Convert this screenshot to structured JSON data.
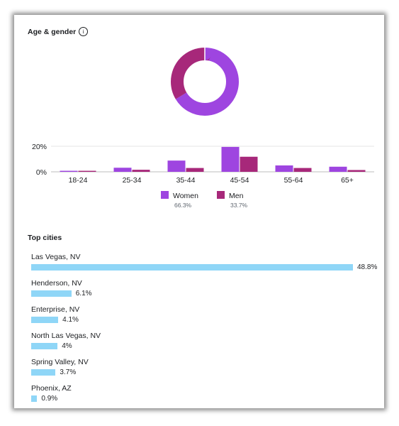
{
  "age_gender": {
    "title": "Age & gender",
    "info_icon": "info-icon",
    "donut": [
      {
        "name": "Women",
        "value": 66.3,
        "color": "#9e45e0"
      },
      {
        "name": "Men",
        "value": 33.7,
        "color": "#a7287a"
      }
    ],
    "legend": [
      {
        "label": "Women",
        "pct": "66.3%",
        "color": "#9e45e0"
      },
      {
        "label": "Men",
        "pct": "33.7%",
        "color": "#a7287a"
      }
    ]
  },
  "chart_data": {
    "type": "bar",
    "categories": [
      "18-24",
      "25-34",
      "35-44",
      "45-54",
      "55-64",
      "65+"
    ],
    "series": [
      {
        "name": "Women",
        "color": "#9e45e0",
        "values": [
          0.8,
          3.2,
          8.8,
          19.5,
          5.0,
          4.0
        ]
      },
      {
        "name": "Men",
        "color": "#a7287a",
        "values": [
          0.8,
          1.6,
          3.0,
          11.8,
          3.0,
          1.4
        ]
      }
    ],
    "yticks": [
      "0%",
      "20%"
    ],
    "ytick_values": [
      0,
      20
    ],
    "ylim": [
      0,
      22
    ],
    "grid": true
  },
  "top_cities": {
    "title": "Top cities",
    "bar_color": "#8fd6f7",
    "cities": [
      {
        "name": "Las Vegas, NV",
        "pct": "48.8%",
        "value": 48.8
      },
      {
        "name": "Henderson, NV",
        "pct": "6.1%",
        "value": 6.1
      },
      {
        "name": "Enterprise, NV",
        "pct": "4.1%",
        "value": 4.1
      },
      {
        "name": "North Las Vegas, NV",
        "pct": "4%",
        "value": 4.0
      },
      {
        "name": "Spring Valley, NV",
        "pct": "3.7%",
        "value": 3.7
      },
      {
        "name": "Phoenix, AZ",
        "pct": "0.9%",
        "value": 0.9
      }
    ]
  }
}
